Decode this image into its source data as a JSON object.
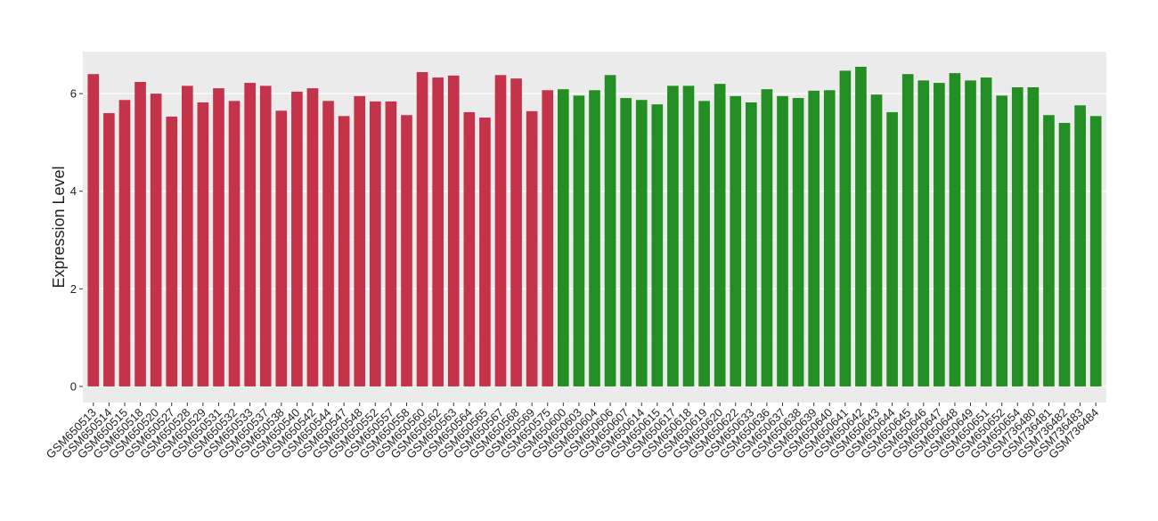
{
  "chart_data": {
    "type": "bar",
    "y_label": "Expression Level",
    "categories": [
      "GSM650513",
      "GSM650514",
      "GSM650515",
      "GSM650518",
      "GSM650520",
      "GSM650527",
      "GSM650528",
      "GSM650529",
      "GSM650531",
      "GSM650532",
      "GSM650533",
      "GSM650537",
      "GSM650538",
      "GSM650540",
      "GSM650542",
      "GSM650544",
      "GSM650547",
      "GSM650548",
      "GSM650552",
      "GSM650557",
      "GSM650558",
      "GSM650560",
      "GSM650562",
      "GSM650563",
      "GSM650564",
      "GSM650565",
      "GSM650567",
      "GSM650568",
      "GSM650569",
      "GSM650575",
      "GSM650600",
      "GSM650603",
      "GSM650604",
      "GSM650606",
      "GSM650607",
      "GSM650614",
      "GSM650615",
      "GSM650617",
      "GSM650618",
      "GSM650619",
      "GSM650620",
      "GSM650622",
      "GSM650633",
      "GSM650636",
      "GSM650637",
      "GSM650638",
      "GSM650639",
      "GSM650640",
      "GSM650641",
      "GSM650642",
      "GSM650643",
      "GSM650644",
      "GSM650645",
      "GSM650646",
      "GSM650647",
      "GSM650648",
      "GSM650649",
      "GSM650651",
      "GSM650652",
      "GSM650654",
      "GSM736480",
      "GSM736481",
      "GSM736482",
      "GSM736483",
      "GSM736484"
    ],
    "values": [
      6.4,
      5.6,
      5.87,
      6.24,
      6.0,
      5.53,
      6.16,
      5.82,
      6.11,
      5.85,
      6.22,
      6.16,
      5.65,
      6.04,
      6.11,
      5.85,
      5.54,
      5.95,
      5.84,
      5.84,
      5.56,
      6.44,
      6.33,
      6.37,
      5.62,
      5.51,
      6.38,
      6.31,
      5.64,
      6.07,
      6.09,
      5.96,
      6.07,
      6.38,
      5.91,
      5.87,
      5.78,
      6.16,
      6.16,
      5.85,
      6.2,
      5.95,
      5.82,
      6.09,
      5.95,
      5.91,
      6.06,
      6.07,
      6.47,
      6.55,
      5.98,
      5.62,
      6.4,
      6.27,
      6.22,
      6.42,
      6.27,
      6.33,
      5.96,
      6.13,
      6.13,
      5.56,
      5.4,
      5.76,
      5.54
    ],
    "colors": [
      "#c3344a",
      "#c3344a",
      "#c3344a",
      "#c3344a",
      "#c3344a",
      "#c3344a",
      "#c3344a",
      "#c3344a",
      "#c3344a",
      "#c3344a",
      "#c3344a",
      "#c3344a",
      "#c3344a",
      "#c3344a",
      "#c3344a",
      "#c3344a",
      "#c3344a",
      "#c3344a",
      "#c3344a",
      "#c3344a",
      "#c3344a",
      "#c3344a",
      "#c3344a",
      "#c3344a",
      "#c3344a",
      "#c3344a",
      "#c3344a",
      "#c3344a",
      "#c3344a",
      "#c3344a",
      "#238e23",
      "#238e23",
      "#238e23",
      "#238e23",
      "#238e23",
      "#238e23",
      "#238e23",
      "#238e23",
      "#238e23",
      "#238e23",
      "#238e23",
      "#238e23",
      "#238e23",
      "#238e23",
      "#238e23",
      "#238e23",
      "#238e23",
      "#238e23",
      "#238e23",
      "#238e23",
      "#238e23",
      "#238e23",
      "#238e23",
      "#238e23",
      "#238e23",
      "#238e23",
      "#238e23",
      "#238e23",
      "#238e23",
      "#238e23",
      "#238e23",
      "#238e23",
      "#238e23",
      "#238e23",
      "#238e23"
    ],
    "ylim": [
      -0.33,
      6.86
    ],
    "yticks": [
      0,
      2,
      4,
      6
    ],
    "grid": true
  }
}
